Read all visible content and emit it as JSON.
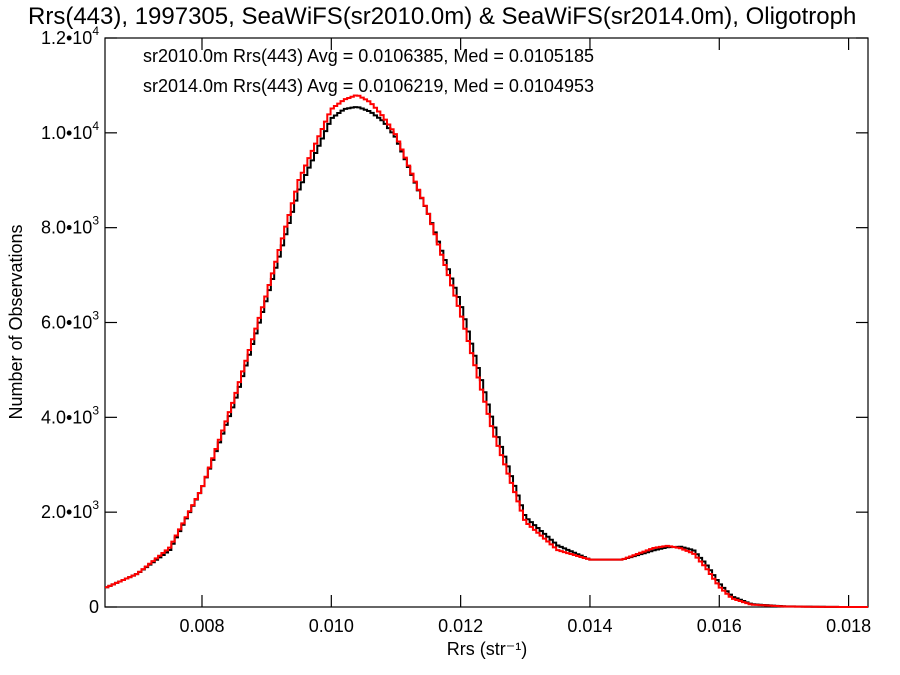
{
  "chart_data": {
    "type": "step",
    "title": "Rrs(443), 1997305, SeaWiFS(sr2010.0m) & SeaWiFS(sr2014.0m), Oligotroph",
    "xlabel": "Rrs (str⁻¹)",
    "ylabel": "Number of Observations",
    "xlim": [
      0.0065,
      0.0183
    ],
    "ylim": [
      0,
      12000
    ],
    "x_ticks": [
      0.008,
      0.01,
      0.012,
      0.014,
      0.016,
      0.018
    ],
    "x_tick_labels": [
      "0.008",
      "0.010",
      "0.012",
      "0.014",
      "0.016",
      "0.018"
    ],
    "y_ticks": [
      0,
      2000,
      4000,
      6000,
      8000,
      10000,
      12000
    ],
    "y_tick_labels": [
      {
        "mant": "0",
        "exp": ""
      },
      {
        "mant": "2.0•10",
        "exp": "3"
      },
      {
        "mant": "4.0•10",
        "exp": "3"
      },
      {
        "mant": "6.0•10",
        "exp": "3"
      },
      {
        "mant": "8.0•10",
        "exp": "3"
      },
      {
        "mant": "1.0•10",
        "exp": "4"
      },
      {
        "mant": "1.2•10",
        "exp": "4"
      }
    ],
    "grid": false,
    "legend_position": "top-left",
    "x": [
      0.0065,
      0.007,
      0.0075,
      0.008,
      0.0085,
      0.009,
      0.0095,
      0.01,
      0.0102,
      0.0104,
      0.0106,
      0.0108,
      0.011,
      0.0115,
      0.012,
      0.0125,
      0.013,
      0.0135,
      0.014,
      0.0145,
      0.015,
      0.0152,
      0.0154,
      0.0156,
      0.0158,
      0.016,
      0.0162,
      0.0165,
      0.017,
      0.0175,
      0.018,
      0.0183
    ],
    "series": [
      {
        "name": "sr2010.0m",
        "color": "#000000",
        "legend_text": "sr2010.0m Rrs(443) Avg = 0.0106385, Med = 0.0105185",
        "values": [
          400,
          700,
          1200,
          2500,
          4300,
          6500,
          8800,
          10300,
          10500,
          10550,
          10450,
          10250,
          9900,
          8300,
          6400,
          3900,
          1900,
          1300,
          1000,
          1000,
          1200,
          1260,
          1270,
          1200,
          900,
          500,
          220,
          60,
          15,
          5,
          0,
          0
        ]
      },
      {
        "name": "sr2014.0m",
        "color": "#ff0000",
        "legend_text": "sr2014.0m Rrs(443) Avg = 0.0106219, Med = 0.0104953",
        "values": [
          400,
          700,
          1250,
          2500,
          4400,
          6600,
          9000,
          10500,
          10700,
          10800,
          10650,
          10350,
          9950,
          8300,
          6200,
          3700,
          1800,
          1200,
          1000,
          1000,
          1250,
          1290,
          1240,
          1130,
          820,
          430,
          180,
          50,
          12,
          4,
          0,
          0
        ]
      }
    ]
  }
}
